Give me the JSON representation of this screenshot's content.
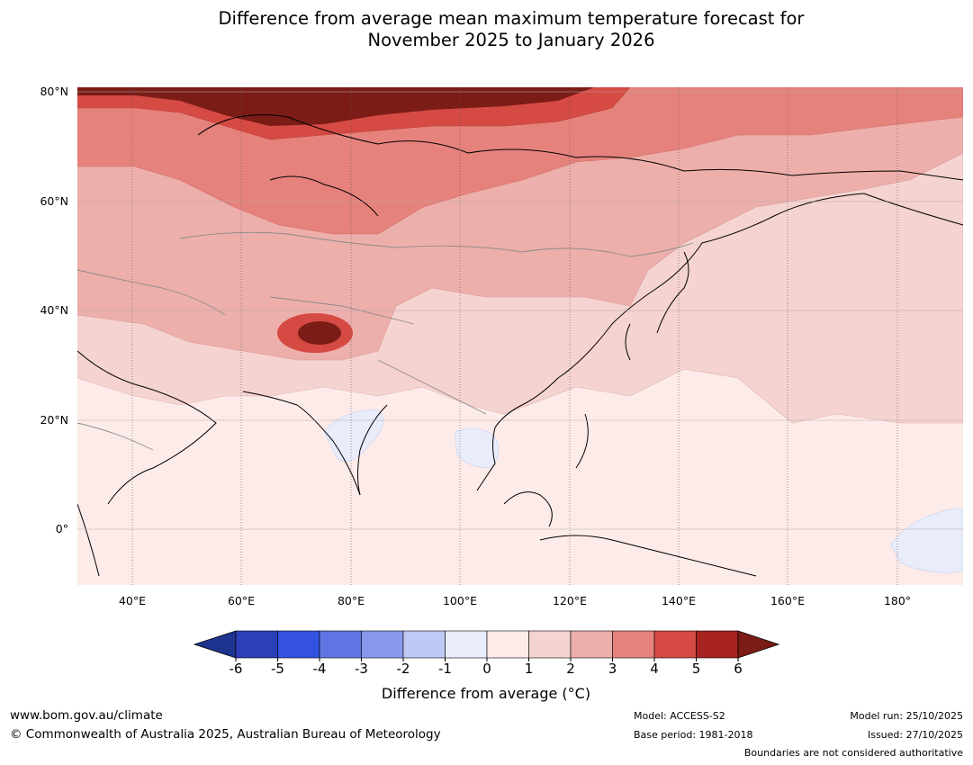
{
  "title": {
    "line1": "Difference from average mean maximum temperature forecast for",
    "line2": "November 2025 to January 2026"
  },
  "axes": {
    "lat_labels": [
      "80°N",
      "60°N",
      "40°N",
      "20°N",
      "0°"
    ],
    "lon_labels": [
      "40°E",
      "60°E",
      "80°E",
      "100°E",
      "120°E",
      "140°E",
      "160°E",
      "180°"
    ]
  },
  "map_regions": {
    "lon_range": [
      30,
      192
    ],
    "lat_range": [
      -10,
      81
    ],
    "anomaly_fields": [
      {
        "region": "Arctic Russia / Kara Sea",
        "class": "5 to 6"
      },
      {
        "region": "Barents coast",
        "class": "4 to 5"
      },
      {
        "region": "Western Siberia",
        "class": "3 to 4"
      },
      {
        "region": "Central Asia / Mongolia",
        "class": "2 to 3"
      },
      {
        "region": "Pamir / Karakoram",
        "class": "5 to 6"
      },
      {
        "region": "Tibetan Plateau / China",
        "class": "1 to 2"
      },
      {
        "region": "Central India",
        "class": "-1 to 0"
      },
      {
        "region": "Thailand / Indochina",
        "class": "-1 to 0"
      },
      {
        "region": "Equatorial Pacific east of PNG",
        "class": "-1 to 0"
      },
      {
        "region": "Maritime Continent / Pacific",
        "class": "0 to 1"
      }
    ]
  },
  "colorbar": {
    "labels": [
      "-6",
      "-5",
      "-4",
      "-3",
      "-2",
      "-1",
      "0",
      "1",
      "2",
      "3",
      "4",
      "5",
      "6"
    ],
    "colors": [
      "#1f3390",
      "#2b3fb8",
      "#3352e0",
      "#5f75e3",
      "#8898ea",
      "#bfc9f5",
      "#e8ecfb",
      "#fcebe9",
      "#f5d3d0",
      "#edafab",
      "#e6827c",
      "#d54a43",
      "#a6231f",
      "#7b1c17"
    ],
    "title": "Difference from average (°C)"
  },
  "footer": {
    "url": "www.bom.gov.au/climate",
    "copyright": "© Commonwealth of Australia 2025, Australian Bureau of Meteorology",
    "model": "Model: ACCESS-S2",
    "base_period": "Base period: 1981-2018",
    "model_run": "Model run: 25/10/2025",
    "issued": "Issued: 27/10/2025",
    "disclaimer": "Boundaries are not considered authoritative"
  }
}
